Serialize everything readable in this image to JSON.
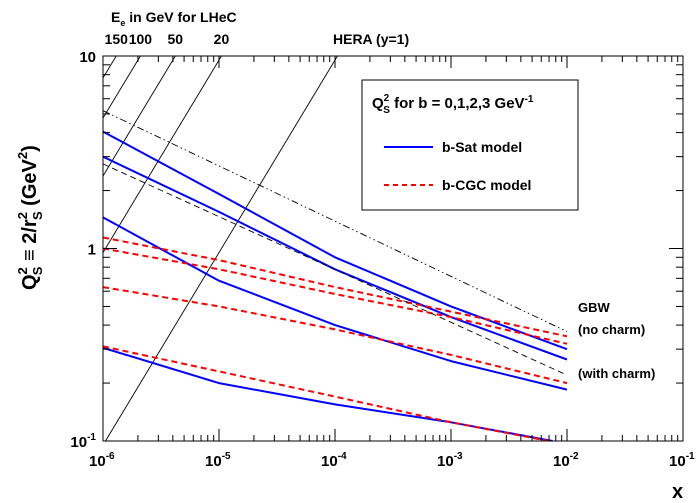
{
  "chart_data": {
    "type": "line",
    "x_scale": "log",
    "y_scale": "log",
    "xlim": [
      1e-06,
      0.1
    ],
    "ylim": [
      0.1,
      10
    ],
    "xlabel": "x",
    "ylabel": "Q_S^2 ≡ 2/r_S^2 (GeV^2)",
    "x_ticks": [
      {
        "base": "10",
        "exp": "-6"
      },
      {
        "base": "10",
        "exp": "-5"
      },
      {
        "base": "10",
        "exp": "-4"
      },
      {
        "base": "10",
        "exp": "-3"
      },
      {
        "base": "10",
        "exp": "-2"
      },
      {
        "base": "10",
        "exp": "-1"
      }
    ],
    "y_ticks": [
      {
        "base": "10",
        "exp": "-1",
        "value": 0.1
      },
      {
        "base": "1",
        "exp": "",
        "value": 1
      },
      {
        "base": "10",
        "exp": "",
        "value": 10
      }
    ],
    "legend": {
      "title_main": "Q",
      "title_sup": "2",
      "title_sub": "S",
      "title_rest": " for b = 0,1,2,3 GeV",
      "title_exp": "-1",
      "entries": [
        {
          "label": "b-Sat model",
          "color": "#0000ff",
          "dash": "solid"
        },
        {
          "label": "b-CGC model",
          "color": "#ff0000",
          "dash": "dashed"
        }
      ]
    },
    "top_axis": {
      "title_main": "E",
      "title_sub": "e",
      "title_rest": " in GeV for LHeC",
      "labels": [
        {
          "text": "150",
          "x_at_top": 1.3e-06
        },
        {
          "text": "100",
          "x_at_top": 2.1e-06
        },
        {
          "text": "50",
          "x_at_top": 4.2e-06
        },
        {
          "text": "20",
          "x_at_top": 1.05e-05
        }
      ],
      "hera_label": "HERA (y=1)"
    },
    "series": [
      {
        "group": "b-Sat",
        "color": "#0000ff",
        "dash": "solid",
        "x": [
          1e-06,
          1e-05,
          0.0001,
          0.001,
          0.01
        ],
        "y": [
          4.05,
          1.92,
          0.9,
          0.5,
          0.3
        ]
      },
      {
        "group": "b-Sat",
        "color": "#0000ff",
        "dash": "solid",
        "x": [
          1e-06,
          1e-05,
          0.0001,
          0.001,
          0.01
        ],
        "y": [
          3.0,
          1.55,
          0.78,
          0.44,
          0.265
        ]
      },
      {
        "group": "b-Sat",
        "color": "#0000ff",
        "dash": "solid",
        "x": [
          1e-06,
          1e-05,
          0.0001,
          0.001,
          0.01
        ],
        "y": [
          1.45,
          0.68,
          0.4,
          0.26,
          0.185
        ]
      },
      {
        "group": "b-Sat",
        "color": "#0000ff",
        "dash": "solid",
        "x": [
          1e-06,
          1e-05,
          0.0001,
          0.001,
          0.0075
        ],
        "y": [
          0.305,
          0.2,
          0.155,
          0.125,
          0.1
        ]
      },
      {
        "group": "b-CGC",
        "color": "#ff0000",
        "dash": "dashed",
        "x": [
          1e-06,
          1e-05,
          0.0001,
          0.001,
          0.01
        ],
        "y": [
          1.14,
          0.87,
          0.63,
          0.47,
          0.35
        ]
      },
      {
        "group": "b-CGC",
        "color": "#ff0000",
        "dash": "dashed",
        "x": [
          1e-06,
          1e-05,
          0.0001,
          0.001,
          0.01
        ],
        "y": [
          1.0,
          0.78,
          0.58,
          0.44,
          0.32
        ]
      },
      {
        "group": "b-CGC",
        "color": "#ff0000",
        "dash": "dashed",
        "x": [
          1e-06,
          1e-05,
          0.0001,
          0.001,
          0.01
        ],
        "y": [
          0.63,
          0.5,
          0.38,
          0.28,
          0.2
        ]
      },
      {
        "group": "b-CGC",
        "color": "#ff0000",
        "dash": "dashed",
        "x": [
          1e-06,
          1e-05,
          0.0001,
          0.001,
          0.007
        ],
        "y": [
          0.31,
          0.23,
          0.17,
          0.125,
          0.1
        ]
      },
      {
        "group": "GBW (no charm)",
        "color": "#000000",
        "dash": "dashdotdot",
        "x": [
          1e-06,
          0.01
        ],
        "y": [
          5.2,
          0.37
        ]
      },
      {
        "group": "GBW (with charm)",
        "color": "#000000",
        "dash": "dashed",
        "x": [
          1e-06,
          0.01
        ],
        "y": [
          2.75,
          0.22
        ]
      }
    ],
    "kinematic_lines": [
      {
        "label": "150",
        "x_at_top": 1.3e-06
      },
      {
        "label": "100",
        "x_at_top": 2.1e-06
      },
      {
        "label": "50",
        "x_at_top": 4.2e-06
      },
      {
        "label": "20",
        "x_at_top": 1.05e-05
      },
      {
        "label": "HERA (y=1)",
        "x_at_top": 0.000105
      }
    ],
    "annotations": [
      "GBW",
      "(no charm)",
      "(with charm)"
    ]
  }
}
